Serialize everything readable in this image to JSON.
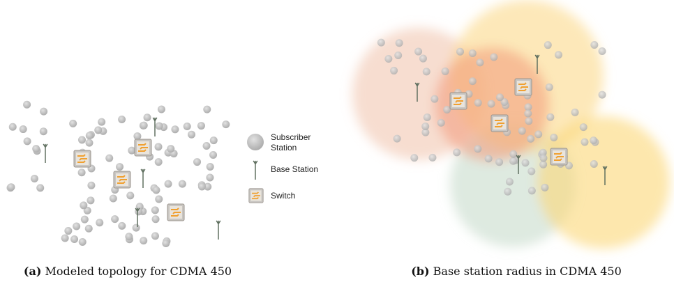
{
  "legend": {
    "items": [
      {
        "label": "Subscriber Station"
      },
      {
        "label": "Base Station"
      },
      {
        "label": "Switch"
      }
    ]
  },
  "captions": [
    {
      "tag": "(a)",
      "text": "Modeled topology for CDMA 450"
    },
    {
      "tag": "(b)",
      "text": "Base station radius in CDMA 450"
    }
  ]
}
